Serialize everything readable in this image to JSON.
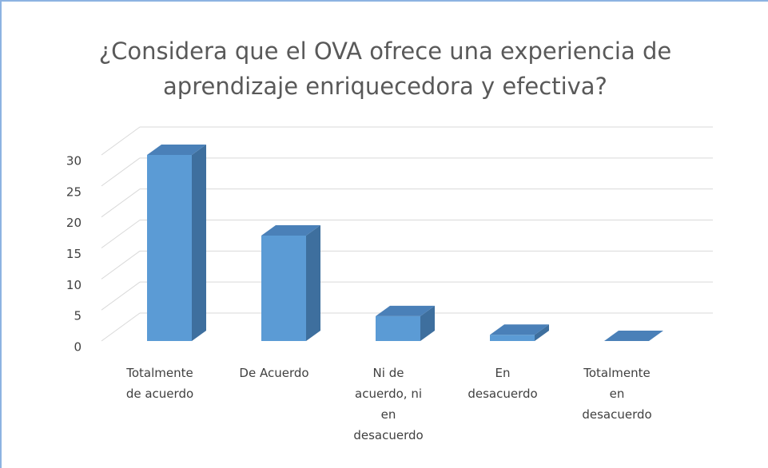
{
  "chart_data": {
    "type": "bar3d",
    "title": "¿Considera que el OVA ofrece una experiencia de aprendizaje enriquecedora y efectiva?",
    "categories": [
      "Totalmente de acuerdo",
      "De Acuerdo",
      "Ni de acuerdo, ni en desacuerdo",
      "En desacuerdo",
      "Totalmente en desacuerdo"
    ],
    "values": [
      30,
      17,
      4,
      1,
      0
    ],
    "color": "#5b9bd5",
    "ylim": [
      0,
      30
    ],
    "yticks": [
      0,
      5,
      10,
      15,
      20,
      25,
      30
    ],
    "grid": true
  }
}
